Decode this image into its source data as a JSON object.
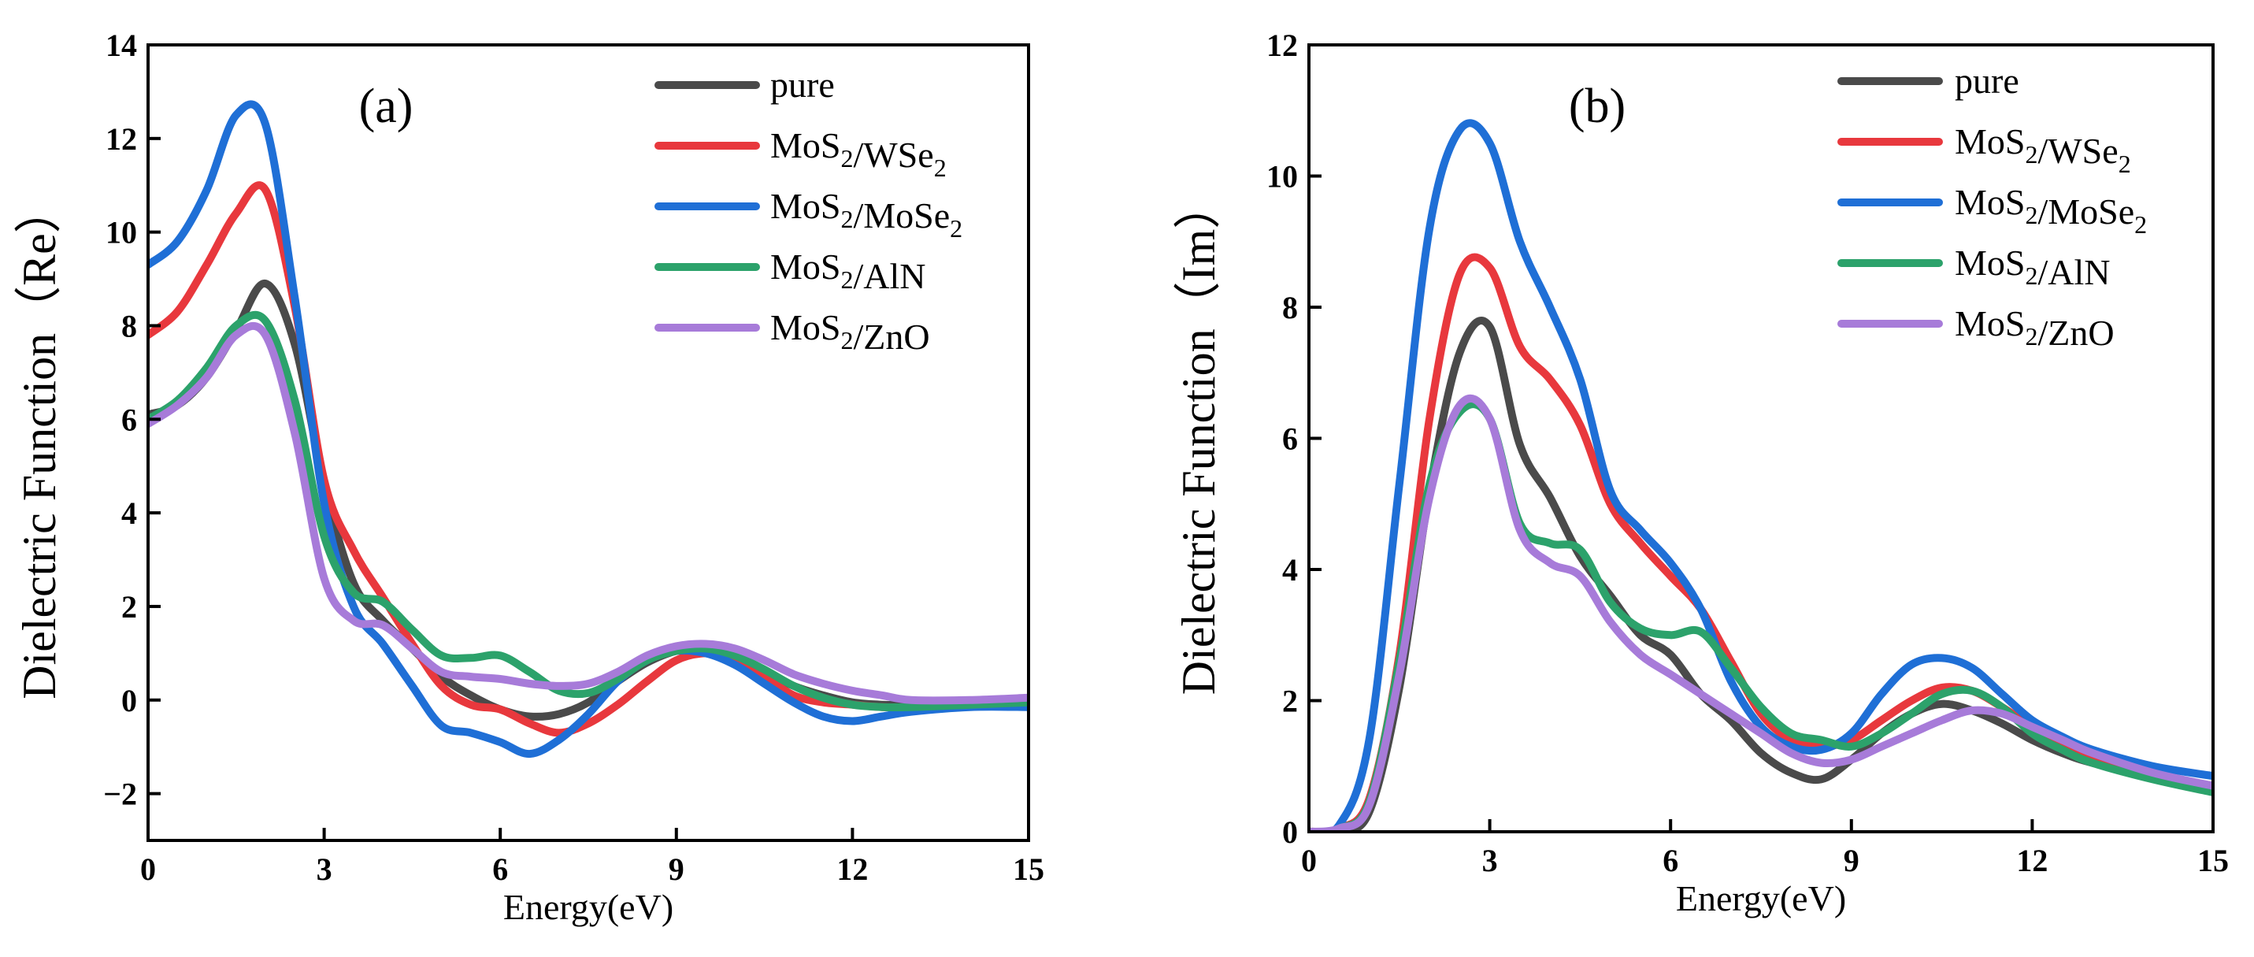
{
  "chart_data": [
    {
      "type": "line",
      "panel_label": "(a)",
      "xlabel": "Energy(eV)",
      "ylabel": "Dielectric Function（Re）",
      "xlim": [
        0,
        15
      ],
      "ylim": [
        -3,
        14
      ],
      "xticks": [
        0,
        3,
        6,
        9,
        12,
        15
      ],
      "yticks": [
        -2,
        0,
        2,
        4,
        6,
        8,
        10,
        12,
        14
      ],
      "ytick_labels": [
        "−2",
        "0",
        "2",
        "4",
        "6",
        "8",
        "10",
        "12",
        "14"
      ],
      "legend_position": "top-right",
      "series": [
        {
          "name": "pure",
          "name_parts": [
            [
              "pure",
              ""
            ]
          ],
          "color": "#4a4a4a",
          "x": [
            0,
            0.5,
            1,
            1.5,
            2,
            2.5,
            3,
            3.5,
            4,
            4.5,
            5,
            5.5,
            6,
            6.5,
            7,
            7.5,
            8,
            8.5,
            9,
            9.5,
            10,
            10.5,
            11,
            11.5,
            12,
            12.5,
            13,
            14,
            15
          ],
          "values": [
            6.1,
            6.3,
            6.9,
            7.9,
            8.9,
            7.6,
            4.6,
            2.5,
            1.7,
            1.1,
            0.5,
            0.1,
            -0.2,
            -0.35,
            -0.3,
            -0.05,
            0.4,
            0.8,
            1.05,
            1.1,
            0.95,
            0.6,
            0.3,
            0.1,
            -0.05,
            -0.1,
            -0.1,
            -0.05,
            0.0
          ]
        },
        {
          "name": "MoS2/WSe2",
          "name_parts": [
            [
              "MoS",
              "2"
            ],
            [
              "/WSe",
              "2"
            ]
          ],
          "color": "#e8383d",
          "x": [
            0,
            0.5,
            1,
            1.5,
            2,
            2.5,
            3,
            3.5,
            4,
            4.5,
            5,
            5.5,
            6,
            6.5,
            7,
            7.5,
            8,
            8.5,
            9,
            9.5,
            10,
            10.5,
            11,
            11.5,
            12,
            12.5,
            13,
            14,
            15
          ],
          "values": [
            7.8,
            8.3,
            9.3,
            10.4,
            10.9,
            8.4,
            4.7,
            3.2,
            2.2,
            1.2,
            0.3,
            -0.1,
            -0.2,
            -0.5,
            -0.7,
            -0.5,
            -0.1,
            0.4,
            0.85,
            1.0,
            0.9,
            0.5,
            0.1,
            -0.05,
            -0.1,
            -0.15,
            -0.15,
            -0.1,
            -0.05
          ]
        },
        {
          "name": "MoS2/MoSe2",
          "name_parts": [
            [
              "MoS",
              "2"
            ],
            [
              "/MoSe",
              "2"
            ]
          ],
          "color": "#1f6fd6",
          "x": [
            0,
            0.5,
            1,
            1.5,
            2,
            2.5,
            3,
            3.5,
            4,
            4.5,
            5,
            5.5,
            6,
            6.5,
            7,
            7.5,
            8,
            8.5,
            9,
            9.5,
            10,
            10.5,
            11,
            11.5,
            12,
            12.5,
            13,
            14,
            15
          ],
          "values": [
            9.3,
            9.8,
            10.9,
            12.5,
            12.3,
            8.6,
            4.2,
            2.0,
            1.2,
            0.3,
            -0.55,
            -0.7,
            -0.9,
            -1.15,
            -0.85,
            -0.3,
            0.4,
            0.85,
            1.05,
            1.0,
            0.75,
            0.35,
            -0.05,
            -0.35,
            -0.45,
            -0.35,
            -0.25,
            -0.15,
            -0.15
          ]
        },
        {
          "name": "MoS2/AlN",
          "name_parts": [
            [
              "MoS",
              "2"
            ],
            [
              "/AlN",
              ""
            ]
          ],
          "color": "#2ca26b",
          "x": [
            0,
            0.5,
            1,
            1.5,
            2,
            2.5,
            3,
            3.5,
            4,
            4.5,
            5,
            5.5,
            6,
            6.5,
            7,
            7.5,
            8,
            8.5,
            9,
            9.5,
            10,
            10.5,
            11,
            11.5,
            12,
            12.5,
            13,
            14,
            15
          ],
          "values": [
            6.0,
            6.4,
            7.1,
            8.0,
            8.1,
            6.4,
            3.5,
            2.3,
            2.1,
            1.5,
            0.95,
            0.9,
            0.95,
            0.6,
            0.2,
            0.15,
            0.45,
            0.85,
            1.05,
            1.1,
            0.95,
            0.65,
            0.3,
            0.05,
            -0.1,
            -0.15,
            -0.15,
            -0.1,
            -0.05
          ]
        },
        {
          "name": "MoS2/ZnO",
          "name_parts": [
            [
              "MoS",
              "2"
            ],
            [
              "/ZnO",
              ""
            ]
          ],
          "color": "#a77bd9",
          "x": [
            0,
            0.5,
            1,
            1.5,
            2,
            2.5,
            3,
            3.5,
            4,
            4.5,
            5,
            5.5,
            6,
            6.5,
            7,
            7.5,
            8,
            8.5,
            9,
            9.5,
            10,
            10.5,
            11,
            11.5,
            12,
            12.5,
            13,
            14,
            15
          ],
          "values": [
            5.9,
            6.3,
            6.9,
            7.8,
            7.8,
            5.7,
            2.6,
            1.7,
            1.6,
            1.1,
            0.6,
            0.5,
            0.45,
            0.35,
            0.3,
            0.35,
            0.6,
            0.95,
            1.15,
            1.2,
            1.1,
            0.85,
            0.55,
            0.35,
            0.2,
            0.1,
            0.0,
            0.0,
            0.05
          ]
        }
      ]
    },
    {
      "type": "line",
      "panel_label": "(b)",
      "xlabel": "Energy(eV)",
      "ylabel": "Dielectric Function（Im）",
      "xlim": [
        0,
        15
      ],
      "ylim": [
        0,
        12
      ],
      "xticks": [
        0,
        3,
        6,
        9,
        12,
        15
      ],
      "yticks": [
        0,
        2,
        4,
        6,
        8,
        10,
        12
      ],
      "ytick_labels": [
        "0",
        "2",
        "4",
        "6",
        "8",
        "10",
        "12"
      ],
      "legend_position": "top-right",
      "series": [
        {
          "name": "pure",
          "name_parts": [
            [
              "pure",
              ""
            ]
          ],
          "color": "#4a4a4a",
          "x": [
            0,
            0.5,
            1,
            1.5,
            2,
            2.5,
            3,
            3.5,
            4,
            4.5,
            5,
            5.5,
            6,
            6.5,
            7,
            7.5,
            8,
            8.5,
            9,
            9.5,
            10,
            10.5,
            11,
            11.5,
            12,
            12.5,
            13,
            14,
            15
          ],
          "values": [
            0.0,
            0.02,
            0.3,
            2.2,
            5.2,
            7.3,
            7.7,
            5.9,
            5.1,
            4.2,
            3.6,
            3.0,
            2.7,
            2.1,
            1.7,
            1.2,
            0.9,
            0.8,
            1.1,
            1.5,
            1.8,
            1.95,
            1.85,
            1.65,
            1.4,
            1.2,
            1.05,
            0.85,
            0.65
          ]
        },
        {
          "name": "MoS2/WSe2",
          "name_parts": [
            [
              "MoS",
              "2"
            ],
            [
              "/WSe",
              "2"
            ]
          ],
          "color": "#e8383d",
          "x": [
            0,
            0.5,
            1,
            1.5,
            2,
            2.5,
            3,
            3.5,
            4,
            4.5,
            5,
            5.5,
            6,
            6.5,
            7,
            7.5,
            8,
            8.5,
            9,
            9.5,
            10,
            10.5,
            11,
            11.5,
            12,
            12.5,
            13,
            14,
            15
          ],
          "values": [
            0.0,
            0.05,
            0.5,
            2.7,
            6.3,
            8.5,
            8.6,
            7.4,
            6.9,
            6.2,
            5.0,
            4.4,
            3.9,
            3.4,
            2.6,
            1.8,
            1.4,
            1.3,
            1.4,
            1.7,
            2.0,
            2.2,
            2.15,
            1.9,
            1.6,
            1.35,
            1.1,
            0.85,
            0.65
          ]
        },
        {
          "name": "MoS2/MoSe2",
          "name_parts": [
            [
              "MoS",
              "2"
            ],
            [
              "/MoSe",
              "2"
            ]
          ],
          "color": "#1f6fd6",
          "x": [
            0,
            0.5,
            1,
            1.5,
            2,
            2.5,
            3,
            3.5,
            4,
            4.5,
            5,
            5.5,
            6,
            6.5,
            7,
            7.5,
            8,
            8.5,
            9,
            9.5,
            10,
            10.5,
            11,
            11.5,
            12,
            12.5,
            13,
            14,
            15
          ],
          "values": [
            0.0,
            0.1,
            1.4,
            5.3,
            9.2,
            10.7,
            10.5,
            9.0,
            8.0,
            6.9,
            5.2,
            4.6,
            4.1,
            3.4,
            2.3,
            1.6,
            1.3,
            1.25,
            1.5,
            2.1,
            2.55,
            2.65,
            2.5,
            2.1,
            1.7,
            1.45,
            1.25,
            1.0,
            0.85
          ]
        },
        {
          "name": "MoS2/AlN",
          "name_parts": [
            [
              "MoS",
              "2"
            ],
            [
              "/AlN",
              ""
            ]
          ],
          "color": "#2ca26b",
          "x": [
            0,
            0.5,
            1,
            1.5,
            2,
            2.5,
            3,
            3.5,
            4,
            4.5,
            5,
            5.5,
            6,
            6.5,
            7,
            7.5,
            8,
            8.5,
            9,
            9.5,
            10,
            10.5,
            11,
            11.5,
            12,
            12.5,
            13,
            14,
            15
          ],
          "values": [
            0.0,
            0.05,
            0.45,
            2.6,
            5.3,
            6.4,
            6.3,
            4.7,
            4.4,
            4.3,
            3.5,
            3.1,
            3.0,
            3.05,
            2.5,
            1.9,
            1.5,
            1.4,
            1.3,
            1.5,
            1.8,
            2.1,
            2.15,
            1.9,
            1.5,
            1.25,
            1.05,
            0.8,
            0.6
          ]
        },
        {
          "name": "MoS2/ZnO",
          "name_parts": [
            [
              "MoS",
              "2"
            ],
            [
              "/ZnO",
              ""
            ]
          ],
          "color": "#a77bd9",
          "x": [
            0,
            0.5,
            1,
            1.5,
            2,
            2.5,
            3,
            3.5,
            4,
            4.5,
            5,
            5.5,
            6,
            6.5,
            7,
            7.5,
            8,
            8.5,
            9,
            9.5,
            10,
            10.5,
            11,
            11.5,
            12,
            12.5,
            13,
            14,
            15
          ],
          "values": [
            0.0,
            0.05,
            0.4,
            2.4,
            5.1,
            6.5,
            6.3,
            4.6,
            4.1,
            3.9,
            3.2,
            2.7,
            2.4,
            2.1,
            1.8,
            1.5,
            1.2,
            1.05,
            1.1,
            1.3,
            1.5,
            1.7,
            1.85,
            1.8,
            1.6,
            1.4,
            1.2,
            0.9,
            0.7
          ]
        }
      ]
    }
  ]
}
